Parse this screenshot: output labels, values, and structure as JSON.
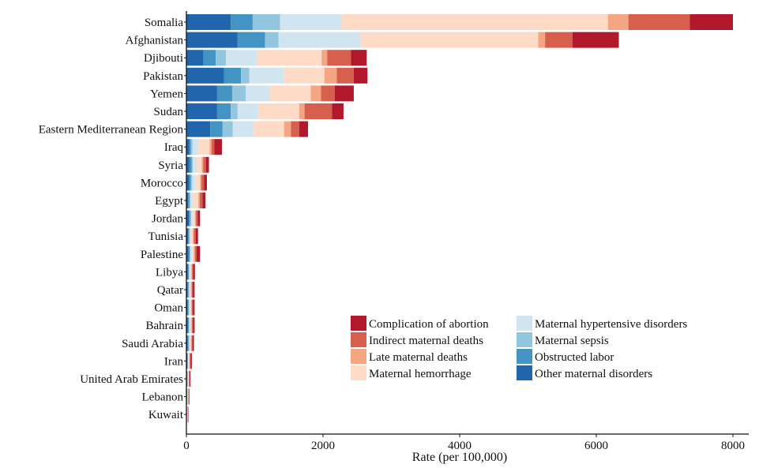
{
  "chart_data": {
    "type": "bar",
    "orientation": "horizontal",
    "stacked": true,
    "xlabel": "Rate (per 100,000)",
    "ylabel": "",
    "xlim": [
      0,
      8000
    ],
    "xticks": [
      "0",
      "2000",
      "4000",
      "6000",
      "8000"
    ],
    "grid": false,
    "legend_position": "bottom-right",
    "categories": [
      "Somalia",
      "Afghanistan",
      "Djibouti",
      "Pakistan",
      "Yemen",
      "Sudan",
      "Eastern Mediterranean Region",
      "Iraq",
      "Syria",
      "Morocco",
      "Egypt",
      "Jordan",
      "Tunisia",
      "Palestine",
      "Libya",
      "Qatar",
      "Oman",
      "Bahrain",
      "Saudi Arabia",
      "Iran",
      "United Arab Emirates",
      "Lebanon",
      "Kuwait"
    ],
    "series": [
      {
        "name": "Other maternal disorders",
        "color": "#2166ac",
        "values": [
          650,
          750,
          250,
          550,
          450,
          450,
          350,
          40,
          45,
          40,
          25,
          35,
          25,
          30,
          22,
          20,
          20,
          22,
          20,
          12,
          10,
          8,
          5
        ]
      },
      {
        "name": "Obstructed labor",
        "color": "#4393c3",
        "values": [
          320,
          400,
          180,
          250,
          220,
          200,
          180,
          25,
          30,
          25,
          20,
          20,
          15,
          18,
          12,
          12,
          12,
          12,
          12,
          8,
          6,
          5,
          3
        ]
      },
      {
        "name": "Maternal sepsis",
        "color": "#92c5de",
        "values": [
          400,
          200,
          150,
          120,
          200,
          100,
          150,
          25,
          20,
          20,
          15,
          15,
          10,
          12,
          8,
          8,
          8,
          8,
          8,
          5,
          4,
          3,
          2
        ]
      },
      {
        "name": "Maternal hypertensive disorders",
        "color": "#d1e5f0",
        "values": [
          900,
          1200,
          450,
          500,
          350,
          300,
          300,
          80,
          50,
          45,
          35,
          30,
          20,
          25,
          15,
          12,
          15,
          15,
          12,
          8,
          6,
          5,
          3
        ]
      },
      {
        "name": "Maternal hemorrhage",
        "color": "#fddbc7",
        "values": [
          3900,
          2600,
          950,
          600,
          600,
          600,
          450,
          170,
          80,
          70,
          80,
          25,
          25,
          25,
          15,
          15,
          15,
          15,
          15,
          10,
          8,
          6,
          4
        ]
      },
      {
        "name": "Late maternal deaths",
        "color": "#f4a582",
        "values": [
          300,
          100,
          80,
          180,
          150,
          80,
          100,
          30,
          20,
          20,
          20,
          15,
          15,
          15,
          12,
          12,
          10,
          10,
          10,
          8,
          5,
          4,
          3
        ]
      },
      {
        "name": "Indirect maternal deaths",
        "color": "#d6604d",
        "values": [
          900,
          400,
          350,
          250,
          200,
          400,
          120,
          40,
          40,
          40,
          40,
          25,
          25,
          25,
          15,
          15,
          15,
          15,
          15,
          10,
          8,
          6,
          4
        ]
      },
      {
        "name": "Complication of abortion",
        "color": "#b2182b",
        "values": [
          630,
          680,
          230,
          200,
          280,
          170,
          130,
          110,
          45,
          40,
          45,
          35,
          35,
          50,
          26,
          26,
          25,
          23,
          18,
          19,
          13,
          8,
          6
        ]
      }
    ],
    "legend_order": [
      "Complication of abortion",
      "Indirect maternal deaths",
      "Late maternal deaths",
      "Maternal hemorrhage",
      "Maternal hypertensive disorders",
      "Maternal sepsis",
      "Obstructed labor",
      "Other maternal disorders"
    ]
  }
}
